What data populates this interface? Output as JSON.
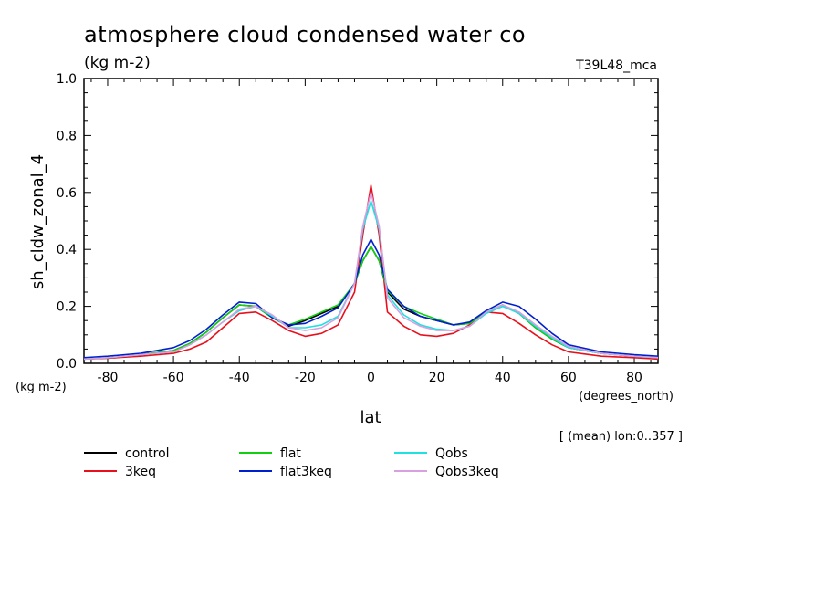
{
  "chart_data": {
    "type": "line",
    "title": "atmosphere cloud condensed water co",
    "units": "(kg m-2)",
    "model_label": "T39L48_mca",
    "ylabel": "sh_cldw_zonal_4",
    "y_units": "(kg m-2)",
    "xlabel": "lat",
    "x_units": "(degrees_north)",
    "note": "[ (mean) lon:0..357 ]",
    "xlim": [
      -87.2,
      87.2
    ],
    "ylim": [
      0,
      1.0
    ],
    "x_ticks": [
      -80,
      -60,
      -40,
      -20,
      0,
      20,
      40,
      60,
      80
    ],
    "x_tick_labels": [
      "-80",
      "-60",
      "-40",
      "-20",
      "0",
      "20",
      "40",
      "60",
      "80"
    ],
    "y_ticks": [
      0.0,
      0.2,
      0.4,
      0.6,
      0.8,
      1.0
    ],
    "y_tick_labels": [
      "0.0",
      "0.2",
      "0.4",
      "0.6",
      "0.8",
      "1.0"
    ],
    "grid": false,
    "legend_position": "bottom",
    "x": [
      -87.2,
      -80,
      -70,
      -60,
      -55,
      -50,
      -45,
      -40,
      -35,
      -30,
      -25,
      -20,
      -15,
      -10,
      -5,
      -2.5,
      0,
      2.5,
      5,
      10,
      15,
      20,
      25,
      30,
      35,
      40,
      45,
      50,
      55,
      60,
      70,
      80,
      87.2
    ],
    "series": [
      {
        "name": "control",
        "color": "#000000",
        "values": [
          0.015,
          0.02,
          0.03,
          0.045,
          0.07,
          0.11,
          0.16,
          0.205,
          0.2,
          0.16,
          0.13,
          0.15,
          0.175,
          0.2,
          0.28,
          0.36,
          0.41,
          0.36,
          0.25,
          0.19,
          0.165,
          0.15,
          0.135,
          0.14,
          0.18,
          0.205,
          0.175,
          0.125,
          0.085,
          0.055,
          0.035,
          0.025,
          0.02
        ]
      },
      {
        "name": "3keq",
        "color": "#e8101c",
        "values": [
          0.015,
          0.018,
          0.025,
          0.035,
          0.05,
          0.075,
          0.125,
          0.175,
          0.18,
          0.15,
          0.115,
          0.095,
          0.105,
          0.135,
          0.25,
          0.45,
          0.625,
          0.45,
          0.18,
          0.13,
          0.1,
          0.095,
          0.105,
          0.135,
          0.18,
          0.175,
          0.14,
          0.1,
          0.065,
          0.04,
          0.025,
          0.02,
          0.015
        ]
      },
      {
        "name": "flat",
        "color": "#10d010",
        "values": [
          0.015,
          0.02,
          0.03,
          0.045,
          0.07,
          0.11,
          0.16,
          0.205,
          0.2,
          0.16,
          0.135,
          0.155,
          0.18,
          0.205,
          0.28,
          0.36,
          0.41,
          0.36,
          0.255,
          0.2,
          0.175,
          0.155,
          0.135,
          0.14,
          0.18,
          0.205,
          0.175,
          0.125,
          0.085,
          0.055,
          0.035,
          0.025,
          0.02
        ]
      },
      {
        "name": "flat3keq",
        "color": "#0020d0",
        "values": [
          0.02,
          0.025,
          0.035,
          0.055,
          0.08,
          0.12,
          0.17,
          0.215,
          0.21,
          0.16,
          0.135,
          0.14,
          0.165,
          0.195,
          0.28,
          0.38,
          0.435,
          0.38,
          0.26,
          0.2,
          0.165,
          0.15,
          0.135,
          0.145,
          0.185,
          0.215,
          0.2,
          0.155,
          0.105,
          0.065,
          0.04,
          0.03,
          0.025
        ]
      },
      {
        "name": "Qobs",
        "color": "#20e0e0",
        "values": [
          0.015,
          0.02,
          0.03,
          0.04,
          0.065,
          0.1,
          0.145,
          0.185,
          0.2,
          0.165,
          0.125,
          0.125,
          0.135,
          0.165,
          0.28,
          0.47,
          0.57,
          0.47,
          0.24,
          0.17,
          0.135,
          0.12,
          0.115,
          0.13,
          0.175,
          0.2,
          0.175,
          0.13,
          0.09,
          0.055,
          0.035,
          0.025,
          0.02
        ]
      },
      {
        "name": "Qobs3keq",
        "color": "#d8a0e0",
        "values": [
          0.015,
          0.02,
          0.03,
          0.04,
          0.065,
          0.1,
          0.145,
          0.19,
          0.2,
          0.17,
          0.125,
          0.115,
          0.125,
          0.16,
          0.28,
          0.48,
          0.6,
          0.48,
          0.23,
          0.16,
          0.13,
          0.115,
          0.115,
          0.13,
          0.18,
          0.205,
          0.18,
          0.135,
          0.095,
          0.06,
          0.035,
          0.025,
          0.02
        ]
      }
    ]
  }
}
